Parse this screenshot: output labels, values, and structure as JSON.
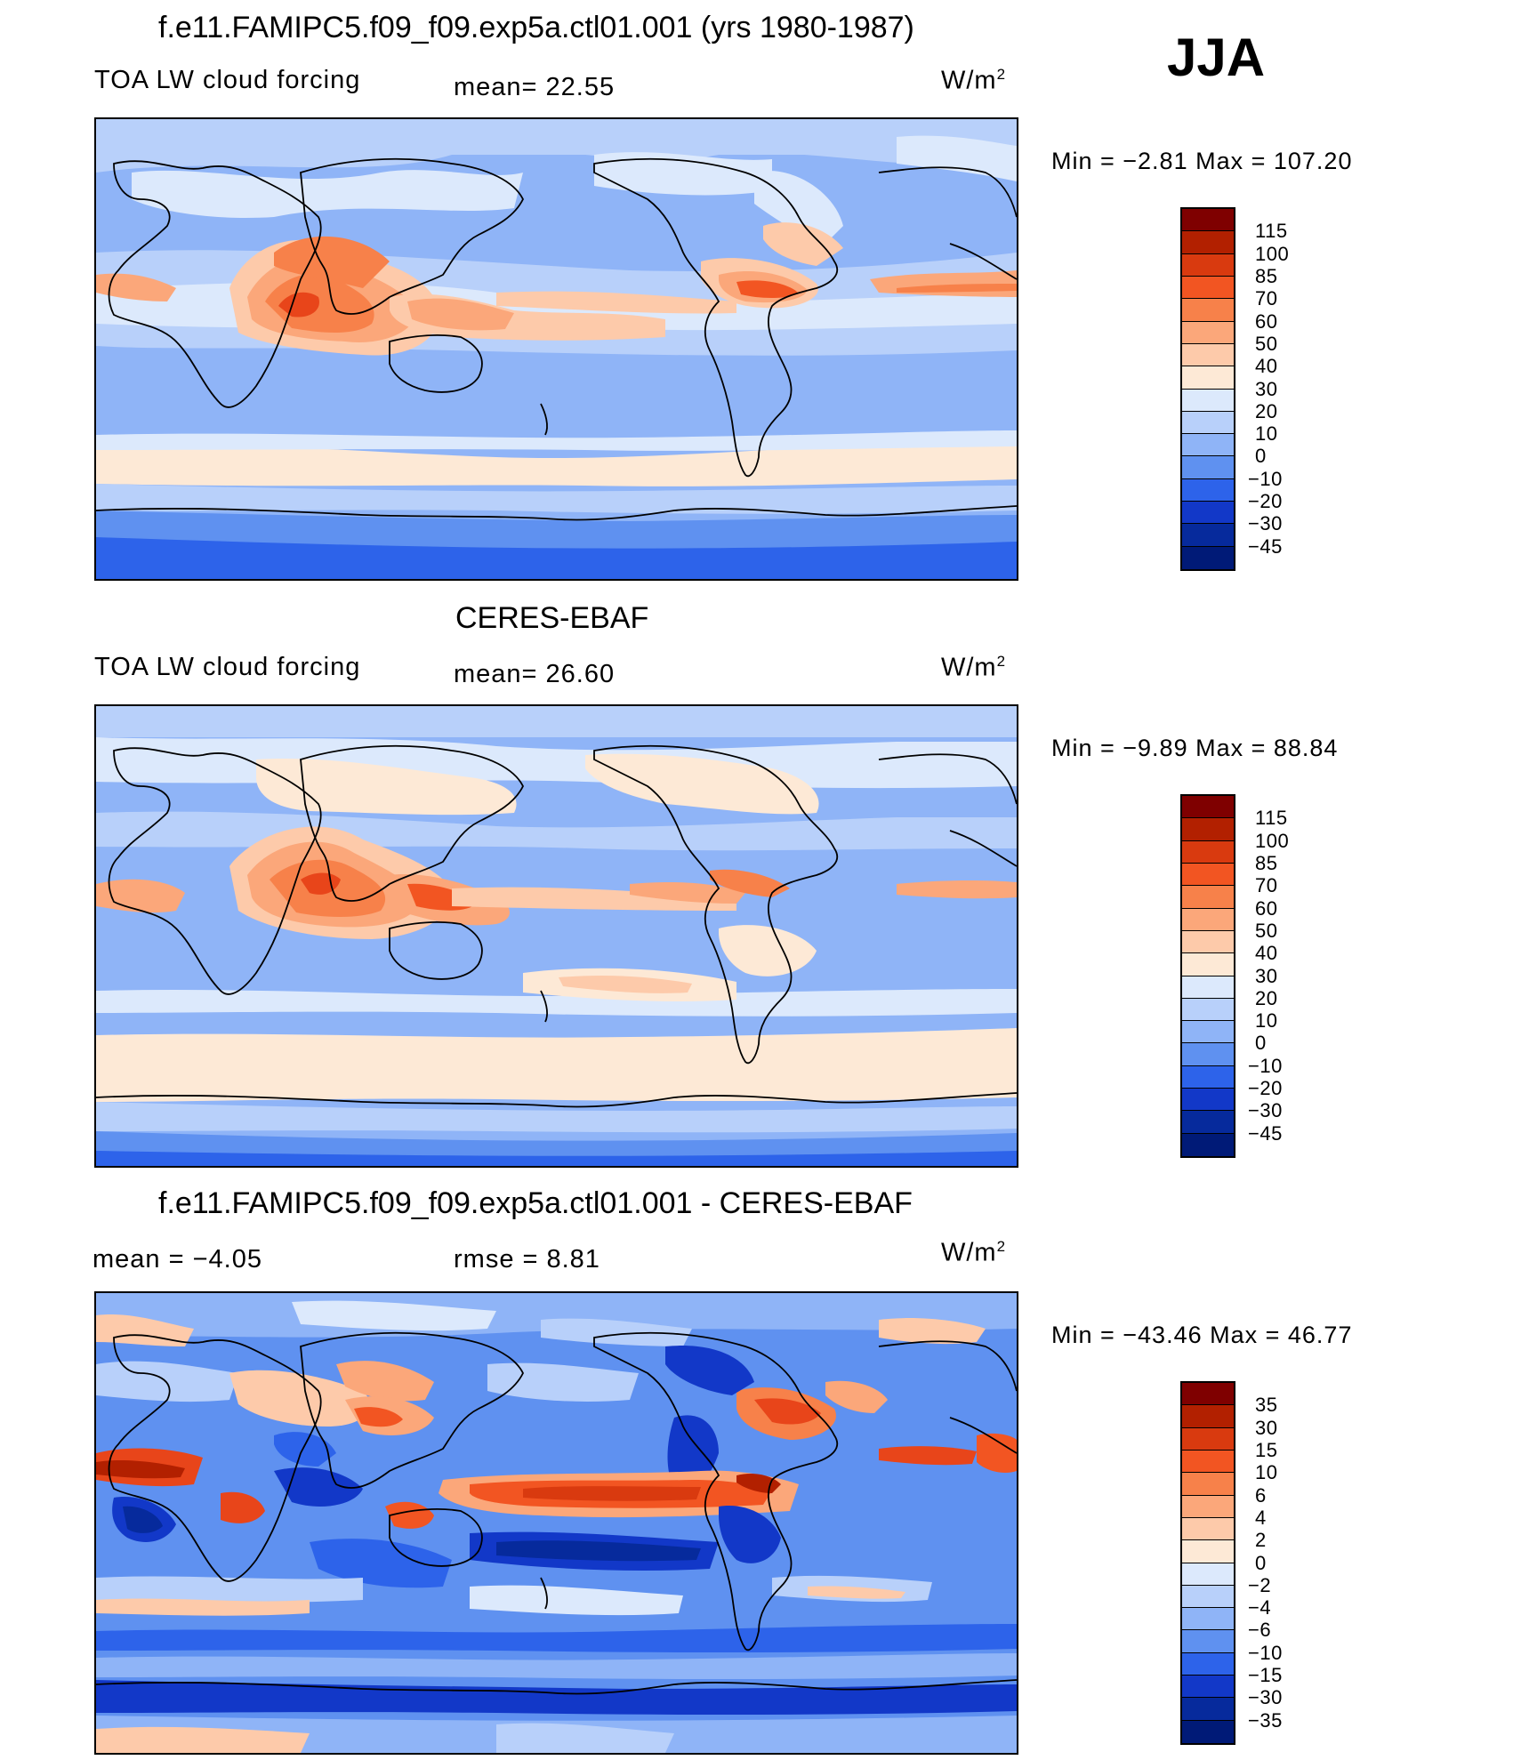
{
  "season": "JJA",
  "panels": [
    {
      "title": "f.e11.FAMIPC5.f09_f09.exp5a.ctl01.001 (yrs 1980-1987)",
      "left_label": "TOA LW cloud forcing",
      "center_label": "mean=   22.55",
      "units": "W/m",
      "units_sup": "2",
      "minmax": "Min =   −2.81  Max  =  107.20",
      "colorbar_ticks": [
        "115",
        "100",
        "85",
        "70",
        "60",
        "50",
        "40",
        "30",
        "20",
        "10",
        "0",
        "−10",
        "−20",
        "−30",
        "−45"
      ]
    },
    {
      "title": "CERES-EBAF",
      "left_label": "TOA LW cloud forcing",
      "center_label": "mean=   26.60",
      "units": "W/m",
      "units_sup": "2",
      "minmax": "Min =   −9.89  Max  =   88.84",
      "colorbar_ticks": [
        "115",
        "100",
        "85",
        "70",
        "60",
        "50",
        "40",
        "30",
        "20",
        "10",
        "0",
        "−10",
        "−20",
        "−30",
        "−45"
      ]
    },
    {
      "title": "f.e11.FAMIPC5.f09_f09.exp5a.ctl01.001 - CERES-EBAF",
      "left_label": "mean  =    −4.05",
      "center_label": "rmse  =     8.81",
      "units": "W/m",
      "units_sup": "2",
      "minmax": "Min  = −43.46  Max  =   46.77",
      "colorbar_ticks": [
        "35",
        "30",
        "15",
        "10",
        "6",
        "4",
        "2",
        "0",
        "−2",
        "−4",
        "−6",
        "−10",
        "−15",
        "−30",
        "−35"
      ]
    }
  ],
  "colors": {
    "colorbar": [
      "#7f0000",
      "#b22000",
      "#d93a0f",
      "#f25522",
      "#f7814a",
      "#fba77a",
      "#fdcaaa",
      "#fde9d6",
      "#dce9fc",
      "#b8d0fa",
      "#8fb4f7",
      "#5f91f0",
      "#2d63ea",
      "#1238c8",
      "#062a9c",
      "#001a77"
    ],
    "coast": "#000000"
  },
  "colors_levels": {
    "dark_red": "#b22000",
    "red": "#e8451a",
    "orange": "#f7814a",
    "salmon": "#fba77a",
    "peach": "#fdcaaa",
    "cream": "#fde9d6",
    "pale_blue": "#dce9fc",
    "light_blue": "#b8d0fa",
    "blue": "#8fb4f7",
    "mid_blue": "#5f91f0",
    "deep_blue": "#2d63ea",
    "navy": "#1238c8"
  }
}
